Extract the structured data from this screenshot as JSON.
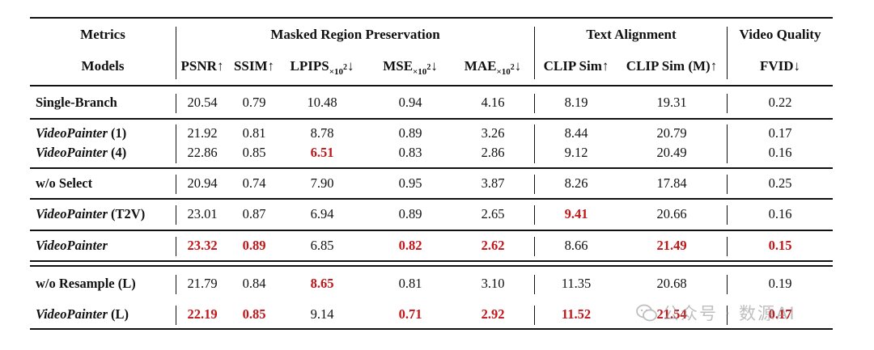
{
  "table": {
    "header1": {
      "metrics": "Metrics",
      "group_preservation": "Masked Region Preservation",
      "group_text": "Text Alignment",
      "group_video": "Video Quality"
    },
    "header2": {
      "models": "Models",
      "psnr": "PSNR↑",
      "ssim": "SSIM↑",
      "lpips": "LPIPS",
      "mse": "MSE",
      "mae": "MAE",
      "sub_scale": "×10",
      "sup_scale": "2",
      "down": "↓",
      "clip_sim": "CLIP Sim↑",
      "clip_sim_m": "CLIP Sim (M)↑",
      "fvid": "FVID↓"
    },
    "rows": [
      {
        "model_bold": "Single-Branch",
        "values": [
          "20.54",
          "0.79",
          "10.48",
          "0.94",
          "4.16",
          "8.19",
          "19.31",
          "0.22"
        ],
        "best": []
      },
      {
        "model_italic": "VideoPainter",
        "model_suffix": " (1)",
        "values": [
          "21.92",
          "0.81",
          "8.78",
          "0.89",
          "3.26",
          "8.44",
          "20.79",
          "0.17"
        ],
        "best": []
      },
      {
        "model_italic": "VideoPainter",
        "model_suffix": " (4)",
        "values": [
          "22.86",
          "0.85",
          "6.51",
          "0.83",
          "2.86",
          "9.12",
          "20.49",
          "0.16"
        ],
        "best": [
          2
        ]
      },
      {
        "model_bold": "w/o Select",
        "values": [
          "20.94",
          "0.74",
          "7.90",
          "0.95",
          "3.87",
          "8.26",
          "17.84",
          "0.25"
        ],
        "best": []
      },
      {
        "model_italic": "VideoPainter",
        "model_suffix": " (T2V)",
        "values": [
          "23.01",
          "0.87",
          "6.94",
          "0.89",
          "2.65",
          "9.41",
          "20.66",
          "0.16"
        ],
        "best": [
          5
        ]
      },
      {
        "model_italic": "VideoPainter",
        "model_suffix": "",
        "values": [
          "23.32",
          "0.89",
          "6.85",
          "0.82",
          "2.62",
          "8.66",
          "21.49",
          "0.15"
        ],
        "best": [
          0,
          1,
          3,
          4,
          6,
          7
        ]
      },
      {
        "model_bold": "w/o Resample (L)",
        "values": [
          "21.79",
          "0.84",
          "8.65",
          "0.81",
          "3.10",
          "11.35",
          "20.68",
          "0.19"
        ],
        "best": [
          2
        ]
      },
      {
        "model_italic": "VideoPainter",
        "model_suffix": " (L)",
        "values": [
          "22.19",
          "0.85",
          "9.14",
          "0.71",
          "2.92",
          "11.52",
          "21.54",
          "0.17"
        ],
        "best": [
          0,
          1,
          3,
          4,
          5,
          6,
          7
        ]
      }
    ]
  },
  "watermark": {
    "text": "公众号 · 数源AI",
    "icon": "wechat-icon"
  },
  "colors": {
    "best": "#c0161a",
    "rules": "#111111"
  }
}
